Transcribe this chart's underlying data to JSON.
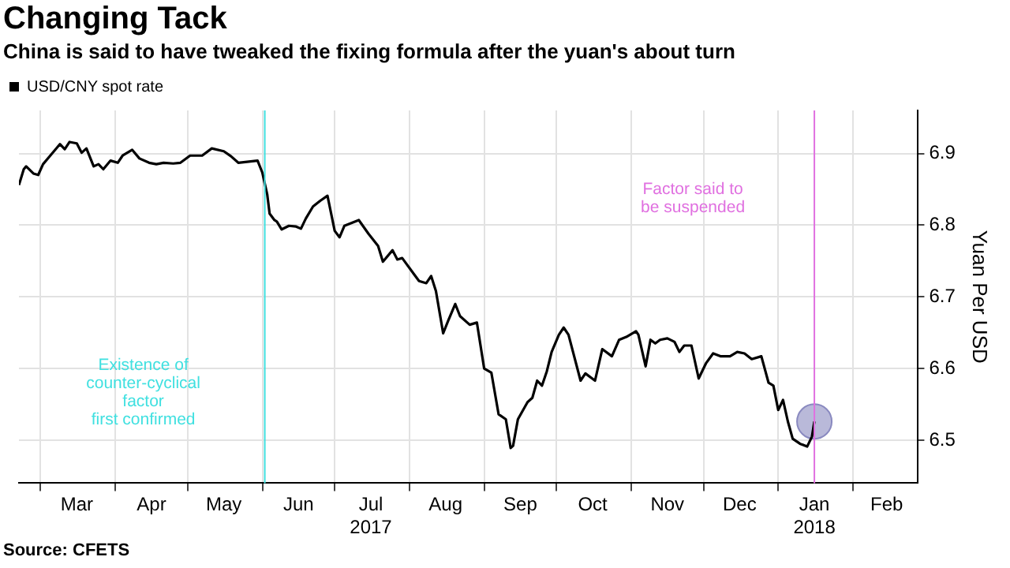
{
  "chart_data": {
    "type": "line",
    "title": "Changing Tack",
    "subtitle": "China is said to have tweaked the fixing formula after the yuan's about turn",
    "ylabel": "Yuan Per USD",
    "annotations": [
      "Source: CFETS"
    ],
    "legend": "top left",
    "grid": true,
    "marker": "none",
    "xlim": [
      "2017-02-20",
      "2018-02-28"
    ],
    "xticks": [
      {
        "value": "2017-03-01",
        "label": null
      },
      {
        "value": "2017-03-16",
        "label": "Mar"
      },
      {
        "value": "2017-04-01",
        "label": null
      },
      {
        "value": "2017-04-16",
        "label": "Apr"
      },
      {
        "value": "2017-05-01",
        "label": null
      },
      {
        "value": "2017-05-16",
        "label": "May"
      },
      {
        "value": "2017-06-01",
        "label": null
      },
      {
        "value": "2017-06-16",
        "label": "Jun"
      },
      {
        "value": "2017-07-01",
        "label": null
      },
      {
        "value": "2017-07-16",
        "label": "Jul\n2017"
      },
      {
        "value": "2017-08-01",
        "label": null
      },
      {
        "value": "2017-08-16",
        "label": "Aug"
      },
      {
        "value": "2017-09-01",
        "label": null
      },
      {
        "value": "2017-09-16",
        "label": "Sep"
      },
      {
        "value": "2017-10-01",
        "label": null
      },
      {
        "value": "2017-10-16",
        "label": "Oct"
      },
      {
        "value": "2017-11-01",
        "label": null
      },
      {
        "value": "2017-11-16",
        "label": "Nov"
      },
      {
        "value": "2017-12-01",
        "label": null
      },
      {
        "value": "2017-12-16",
        "label": "Dec"
      },
      {
        "value": "2018-01-01",
        "label": null
      },
      {
        "value": "2018-01-16",
        "label": "Jan\n2018"
      },
      {
        "value": "2018-02-01",
        "label": null
      },
      {
        "value": "2018-02-15",
        "label": "Feb"
      }
    ],
    "ylim": [
      6.44,
      6.96
    ],
    "yticks": [
      6.5,
      6.6,
      6.7,
      6.8,
      6.9
    ],
    "ref_lines": [
      {
        "axis": "x",
        "value": "2017-06-02",
        "label": "Existence of\ncounter-cyclical\nfactor\nfirst confirmed",
        "color": "#40e0e0"
      },
      {
        "axis": "x",
        "value": "2018-01-16",
        "label": "Factor said to\nbe suspended",
        "color": "#e070e0"
      }
    ],
    "series": [
      {
        "name": "USD/CNY spot rate",
        "color": "#000000",
        "x": [
          "2017-02-20",
          "2017-02-22",
          "2017-02-23",
          "2017-02-26",
          "2017-02-28",
          "2017-03-02",
          "2017-03-05",
          "2017-03-09",
          "2017-03-11",
          "2017-03-13",
          "2017-03-16",
          "2017-03-18",
          "2017-03-20",
          "2017-03-23",
          "2017-03-25",
          "2017-03-27",
          "2017-03-30",
          "2017-04-02",
          "2017-04-04",
          "2017-04-08",
          "2017-04-11",
          "2017-04-15",
          "2017-04-18",
          "2017-04-21",
          "2017-04-25",
          "2017-04-28",
          "2017-05-02",
          "2017-05-07",
          "2017-05-11",
          "2017-05-16",
          "2017-05-19",
          "2017-05-22",
          "2017-05-30",
          "2017-06-01",
          "2017-06-03",
          "2017-06-04",
          "2017-06-06",
          "2017-06-07",
          "2017-06-09",
          "2017-06-12",
          "2017-06-15",
          "2017-06-17",
          "2017-06-19",
          "2017-06-22",
          "2017-06-25",
          "2017-06-28",
          "2017-07-01",
          "2017-07-03",
          "2017-07-05",
          "2017-07-11",
          "2017-07-15",
          "2017-07-19",
          "2017-07-21",
          "2017-07-25",
          "2017-07-27",
          "2017-07-29",
          "2017-08-03",
          "2017-08-05",
          "2017-08-08",
          "2017-08-10",
          "2017-08-12",
          "2017-08-15",
          "2017-08-17",
          "2017-08-20",
          "2017-08-22",
          "2017-08-26",
          "2017-08-29",
          "2017-09-01",
          "2017-09-04",
          "2017-09-07",
          "2017-09-10",
          "2017-09-12",
          "2017-09-13",
          "2017-09-15",
          "2017-09-19",
          "2017-09-21",
          "2017-09-23",
          "2017-09-25",
          "2017-09-27",
          "2017-09-29",
          "2017-10-02",
          "2017-10-04",
          "2017-10-06",
          "2017-10-11",
          "2017-10-13",
          "2017-10-17",
          "2017-10-20",
          "2017-10-24",
          "2017-10-27",
          "2017-10-30",
          "2017-11-03",
          "2017-11-04",
          "2017-11-07",
          "2017-11-09",
          "2017-11-11",
          "2017-11-13",
          "2017-11-16",
          "2017-11-19",
          "2017-11-21",
          "2017-11-23",
          "2017-11-26",
          "2017-11-29",
          "2017-12-02",
          "2017-12-05",
          "2017-12-08",
          "2017-12-12",
          "2017-12-15",
          "2017-12-18",
          "2017-12-21",
          "2017-12-25",
          "2017-12-28",
          "2017-12-30",
          "2018-01-01",
          "2018-01-03",
          "2018-01-05",
          "2018-01-07",
          "2018-01-10",
          "2018-01-13",
          "2018-01-15",
          "2018-01-16"
        ],
        "values": [
          6.856,
          6.878,
          6.882,
          6.872,
          6.87,
          6.885,
          6.897,
          6.913,
          6.906,
          6.916,
          6.914,
          6.901,
          6.907,
          6.882,
          6.885,
          6.878,
          6.89,
          6.887,
          6.897,
          6.905,
          6.893,
          6.887,
          6.885,
          6.887,
          6.886,
          6.887,
          6.897,
          6.897,
          6.907,
          6.903,
          6.896,
          6.887,
          6.89,
          6.873,
          6.843,
          6.816,
          6.807,
          6.805,
          6.794,
          6.799,
          6.798,
          6.795,
          6.809,
          6.826,
          6.834,
          6.841,
          6.792,
          6.783,
          6.799,
          6.807,
          6.788,
          6.771,
          6.749,
          6.765,
          6.752,
          6.754,
          6.731,
          6.722,
          6.719,
          6.729,
          6.708,
          6.649,
          6.666,
          6.69,
          6.673,
          6.661,
          6.664,
          6.6,
          6.594,
          6.536,
          6.529,
          6.489,
          6.492,
          6.529,
          6.553,
          6.559,
          6.583,
          6.576,
          6.596,
          6.623,
          6.647,
          6.657,
          6.647,
          6.583,
          6.593,
          6.583,
          6.627,
          6.617,
          6.64,
          6.644,
          6.652,
          6.647,
          6.603,
          6.64,
          6.635,
          6.64,
          6.642,
          6.637,
          6.623,
          6.632,
          6.632,
          6.586,
          6.607,
          6.621,
          6.617,
          6.617,
          6.623,
          6.621,
          6.613,
          6.617,
          6.58,
          6.576,
          6.542,
          6.556,
          6.526,
          6.502,
          6.495,
          6.491,
          6.505,
          6.526
        ]
      },
      {
        "type": "scatter",
        "marker": "circle",
        "color": "#8a8ac0",
        "x": [
          "2018-01-16"
        ],
        "values": [
          6.526
        ]
      }
    ]
  }
}
